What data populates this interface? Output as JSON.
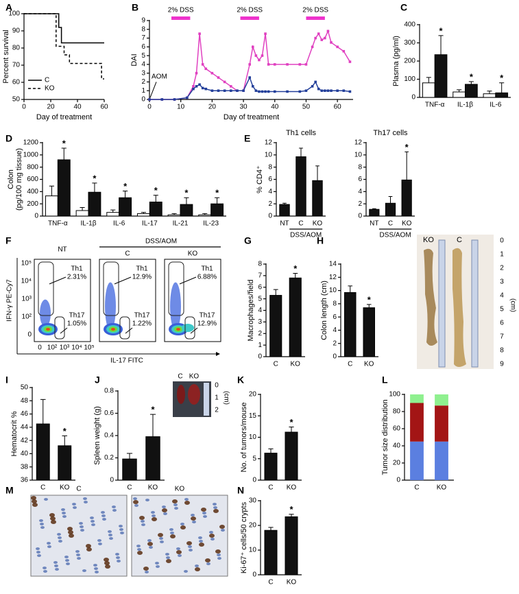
{
  "chart_data": [
    {
      "type": "line",
      "panel": "A",
      "xlabel": "Day of treatment",
      "ylabel": "Percent survival",
      "xlim": [
        0,
        60
      ],
      "ylim": [
        50,
        100
      ],
      "xticks": [
        0,
        20,
        40,
        60
      ],
      "yticks": [
        50,
        60,
        70,
        80,
        90,
        100
      ],
      "legend": "lower left",
      "series": [
        {
          "name": "C",
          "color": "#000000",
          "dash": false,
          "x": [
            0,
            26,
            26,
            28,
            28,
            60
          ],
          "values": [
            100,
            100,
            92,
            92,
            83,
            83
          ]
        },
        {
          "name": "KO",
          "color": "#000000",
          "dash": true,
          "x": [
            0,
            24,
            24,
            30,
            30,
            34,
            34,
            58,
            58,
            60
          ],
          "values": [
            100,
            100,
            81,
            81,
            76,
            76,
            71,
            71,
            62,
            62
          ]
        }
      ]
    },
    {
      "type": "line",
      "panel": "B",
      "xlabel": "Day of treatment",
      "ylabel": "DAI",
      "xlim": [
        0,
        65
      ],
      "ylim": [
        0,
        9
      ],
      "xticks": [
        0,
        10,
        20,
        30,
        40,
        50,
        60
      ],
      "yticks": [
        0,
        1,
        2,
        3,
        4,
        5,
        6,
        7,
        8,
        9
      ],
      "x": [
        0,
        4,
        8,
        12,
        14,
        15,
        16,
        17,
        18,
        20,
        22,
        24,
        26,
        28,
        30,
        32,
        33,
        34,
        35,
        36,
        37,
        38,
        40,
        44,
        48,
        50,
        52,
        53,
        54,
        55,
        56,
        57,
        58,
        60,
        62,
        64
      ],
      "series": [
        {
          "color": "#e040c0",
          "values": [
            0,
            0,
            0,
            0.2,
            1.5,
            3,
            7.5,
            4,
            3.5,
            3,
            2.5,
            2,
            1.5,
            1,
            1,
            4,
            6,
            5,
            4.5,
            5,
            7.5,
            4,
            4,
            4,
            4,
            4,
            6,
            7,
            7.5,
            6.8,
            7,
            7.8,
            6.5,
            6,
            5.5,
            4.3
          ]
        },
        {
          "color": "#233f9a",
          "values": [
            0,
            0,
            0,
            0.2,
            1.2,
            1.5,
            1.7,
            1.3,
            1.2,
            1,
            1,
            1,
            1,
            1,
            1,
            2.5,
            1.5,
            1,
            0.9,
            0.9,
            0.9,
            0.9,
            0.9,
            0.9,
            0.9,
            1,
            1.5,
            2,
            1.2,
            1,
            1,
            1,
            1,
            1,
            1,
            0.9
          ]
        }
      ],
      "period_color": "#ee33cc",
      "periods": [
        {
          "text": "2% DSS",
          "x": [
            7,
            13
          ]
        },
        {
          "text": "2% DSS",
          "x": [
            29,
            35
          ]
        },
        {
          "text": "2% DSS",
          "x": [
            50,
            56
          ]
        }
      ],
      "arrows": [
        {
          "text": "AOM",
          "x": 0
        }
      ]
    },
    {
      "type": "bar",
      "panel": "C",
      "ylabel": "Plasma (pg/ml)",
      "ylim": [
        0,
        400
      ],
      "yticks": [
        0,
        100,
        200,
        300,
        400
      ],
      "categories": [
        "TNF-α",
        "IL-1β",
        "IL-6"
      ],
      "series": [
        {
          "color": "#ffffff",
          "values": [
            80,
            30,
            20
          ],
          "errors": [
            30,
            12,
            15
          ]
        },
        {
          "color": "#111111",
          "values": [
            235,
            72,
            25
          ],
          "errors": [
            105,
            15,
            55
          ],
          "significance": [
            "*",
            "*",
            "*"
          ]
        }
      ]
    },
    {
      "type": "bar",
      "panel": "D",
      "ylabel": [
        "Colon",
        "(pg/100 mg tissue)"
      ],
      "ylim": [
        0,
        1200
      ],
      "yticks": [
        0,
        200,
        400,
        600,
        800,
        1000,
        1200
      ],
      "categories": [
        "TNF-α",
        "IL-1β",
        "IL-6",
        "IL-17",
        "IL-21",
        "IL-23"
      ],
      "series": [
        {
          "color": "#ffffff",
          "values": [
            330,
            90,
            60,
            40,
            20,
            20
          ],
          "errors": [
            160,
            50,
            40,
            20,
            20,
            20
          ]
        },
        {
          "color": "#111111",
          "values": [
            920,
            390,
            300,
            230,
            190,
            200
          ],
          "errors": [
            190,
            150,
            110,
            110,
            110,
            100
          ],
          "significance": [
            "*",
            "*",
            "*",
            "*",
            "*",
            "*"
          ]
        }
      ]
    },
    {
      "type": "bar",
      "panel": "E",
      "title": "Th1 cells",
      "ylabel": "% CD4⁺",
      "ylim": [
        0,
        12
      ],
      "yticks": [
        0,
        2,
        4,
        6,
        8,
        10,
        12
      ],
      "categories": [
        "NT",
        "C",
        "KO"
      ],
      "group_label": "DSS/AOM",
      "series": [
        {
          "color": "#111111",
          "values": [
            1.9,
            9.7,
            5.8
          ],
          "errors": [
            0.2,
            1.4,
            2.4
          ]
        }
      ]
    },
    {
      "type": "bar",
      "title": "Th17 cells",
      "ylim": [
        0,
        12
      ],
      "yticks": [
        0,
        2,
        4,
        6,
        8,
        10,
        12
      ],
      "categories": [
        "NT",
        "C",
        "KO"
      ],
      "group_label": "DSS/AOM",
      "series": [
        {
          "color": "#111111",
          "values": [
            1.1,
            2.1,
            5.9
          ],
          "errors": [
            0.1,
            1.1,
            4.6
          ],
          "significance": [
            null,
            null,
            "*"
          ]
        }
      ]
    },
    {
      "type": "bar",
      "panel": "G",
      "ylabel": "Macrophages/field",
      "ylim": [
        0,
        8
      ],
      "yticks": [
        0,
        1,
        2,
        3,
        4,
        5,
        6,
        7,
        8
      ],
      "categories": [
        "C",
        "KO"
      ],
      "series": [
        {
          "color": "#111111",
          "values": [
            5.3,
            6.8
          ],
          "errors": [
            0.5,
            0.4
          ],
          "significance": [
            null,
            "*"
          ]
        }
      ]
    },
    {
      "type": "bar",
      "panel": "H",
      "ylabel": "Colon length (cm)",
      "ylim": [
        0,
        14
      ],
      "yticks": [
        0,
        2,
        4,
        6,
        8,
        10,
        12,
        14
      ],
      "categories": [
        "C",
        "KO"
      ],
      "series": [
        {
          "color": "#111111",
          "values": [
            9.7,
            7.4
          ],
          "errors": [
            1,
            0.5
          ],
          "significance": [
            null,
            "*"
          ]
        }
      ]
    },
    {
      "type": "bar",
      "panel": "I",
      "ylabel": "Hematocrit %",
      "ylim": [
        36,
        50
      ],
      "yticks": [
        36,
        38,
        40,
        42,
        44,
        46,
        48,
        50
      ],
      "categories": [
        "C",
        "KO"
      ],
      "series": [
        {
          "color": "#111111",
          "values": [
            44.5,
            41.2
          ],
          "errors": [
            3.7,
            1.5
          ],
          "significance": [
            null,
            "*"
          ]
        }
      ]
    },
    {
      "type": "bar",
      "panel": "J",
      "ylabel": "Spleen weight (g)",
      "ylim": [
        0,
        0.8
      ],
      "yticks": [
        0,
        0.2,
        0.4,
        0.6,
        0.8
      ],
      "categories": [
        "C",
        "KO"
      ],
      "series": [
        {
          "color": "#111111",
          "values": [
            0.19,
            0.39
          ],
          "errors": [
            0.05,
            0.2
          ],
          "significance": [
            null,
            "*"
          ]
        }
      ]
    },
    {
      "type": "bar",
      "panel": "K",
      "ylabel": "No. of tumors/mouse",
      "ylim": [
        0,
        20
      ],
      "yticks": [
        0,
        5,
        10,
        15,
        20
      ],
      "categories": [
        "C",
        "KO"
      ],
      "series": [
        {
          "color": "#111111",
          "values": [
            6.3,
            11.2
          ],
          "errors": [
            1,
            1.2
          ],
          "significance": [
            null,
            "*"
          ]
        }
      ]
    },
    {
      "type": "stacked_bar",
      "panel": "L",
      "ylabel": "Tumor size distribution",
      "ylim": [
        0,
        100
      ],
      "yticks": [
        0,
        20,
        40,
        60,
        80,
        100
      ],
      "categories": [
        "C",
        "KO"
      ],
      "series": [
        {
          "color": "#5b7fe0",
          "values": [
            45,
            45
          ]
        },
        {
          "color": "#a31515",
          "values": [
            45,
            42
          ]
        },
        {
          "color": "#8ff08f",
          "values": [
            10,
            13
          ]
        }
      ]
    },
    {
      "type": "bar",
      "panel": "N",
      "ylabel": "Ki-67⁺ cells/50 crypts",
      "ylim": [
        0,
        30
      ],
      "yticks": [
        0,
        10,
        20,
        30
      ],
      "categories": [
        "C",
        "KO"
      ],
      "series": [
        {
          "color": "#111111",
          "values": [
            18,
            23.5
          ],
          "errors": [
            1.2,
            1
          ],
          "significance": [
            null,
            "*"
          ]
        }
      ]
    }
  ],
  "figures": {
    "F": {
      "panel": "F",
      "group": "DSS/AOM",
      "columns": [
        "NT",
        "C",
        "KO"
      ],
      "gates": [
        {
          "th1": "Th1",
          "th1_pct": "2.31%",
          "th17": "Th17",
          "th17_pct": "1.05%"
        },
        {
          "th1": "Th1",
          "th1_pct": "12.9%",
          "th17": "Th17",
          "th17_pct": "1.22%"
        },
        {
          "th1": "Th1",
          "th1_pct": "6.88%",
          "th17": "Th17",
          "th17_pct": "12.9%"
        }
      ],
      "yticks": [
        "10⁵",
        "10⁴",
        "10³",
        "10²",
        "0"
      ],
      "xticks": [
        "0",
        "10²",
        "10³",
        "10⁴",
        "10⁵"
      ],
      "ylabel": "IFN-γ PE-Cy7",
      "xlabel": "IL-17 FITC"
    },
    "H_photo": {
      "labels": [
        "KO",
        "C"
      ],
      "scale": [
        "0",
        "1",
        "2",
        "3",
        "4",
        "5",
        "6",
        "7",
        "8",
        "9"
      ],
      "unit": "(cm)"
    },
    "J_photo": {
      "labels": [
        "C",
        "KO"
      ],
      "scale": [
        "0",
        "1",
        "2"
      ],
      "unit": "(cm)"
    },
    "M": {
      "panel": "M",
      "labels": [
        "C",
        "KO"
      ]
    }
  }
}
